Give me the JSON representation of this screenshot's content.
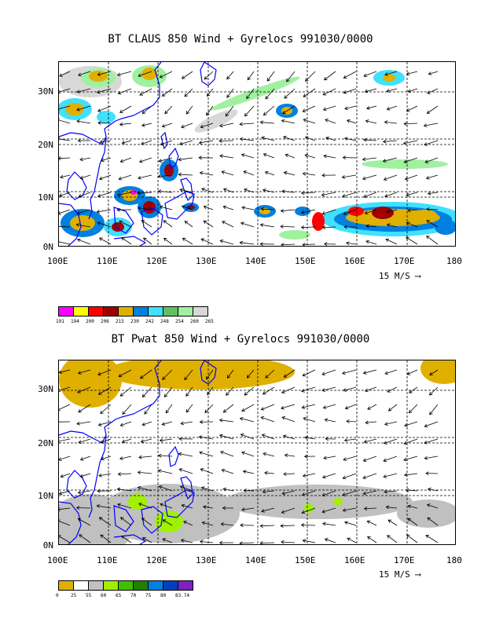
{
  "panels": [
    {
      "title": "BT CLAUS 850 Wind + Gyrelocs 991030/0000",
      "lat_labels": [
        "30N",
        "20N",
        "10N",
        "0N"
      ],
      "lon_labels": [
        "100E",
        "110E",
        "120E",
        "130E",
        "140E",
        "150E",
        "160E",
        "170E",
        "180"
      ],
      "scale_label": "15 M/S",
      "colorbar": {
        "colors": [
          "#ff00ff",
          "#ffff00",
          "#ff0000",
          "#a00000",
          "#e0b000",
          "#0080e0",
          "#40e0ff",
          "#60c060",
          "#a0f0a0",
          "#d8d8d8"
        ],
        "ticks": [
          "191",
          "194",
          "200",
          "206",
          "215",
          "230",
          "242",
          "248",
          "254",
          "260",
          "265"
        ]
      }
    },
    {
      "title": "BT Pwat 850 Wind + Gyrelocs 991030/0000",
      "lat_labels": [
        "30N",
        "20N",
        "10N",
        "0N"
      ],
      "lon_labels": [
        "100E",
        "110E",
        "120E",
        "130E",
        "140E",
        "150E",
        "160E",
        "170E",
        "180"
      ],
      "scale_label": "15 M/S",
      "colorbar": {
        "colors": [
          "#e0b000",
          "#ffffff",
          "#c0c0c0",
          "#a0f000",
          "#40c000",
          "#208000",
          "#0080e0",
          "#0040c0",
          "#8020c0"
        ],
        "ticks": [
          "0",
          "25",
          "55",
          "60",
          "65",
          "70",
          "75",
          "80",
          "83.74"
        ]
      }
    }
  ]
}
